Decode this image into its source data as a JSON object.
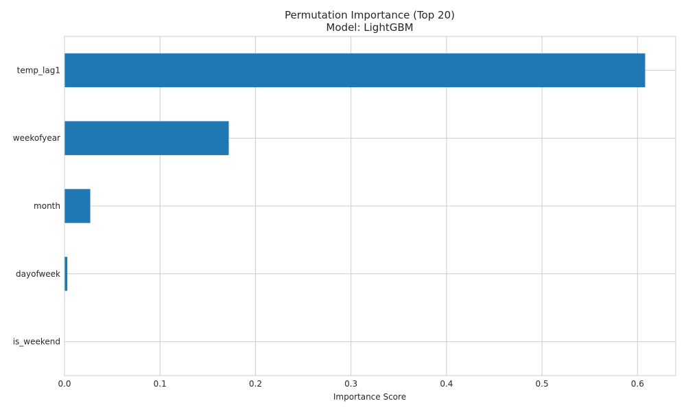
{
  "chart_data": {
    "type": "bar",
    "orientation": "horizontal",
    "title": "Permutation Importance (Top 20)",
    "subtitle": "Model: LightGBM",
    "xlabel": "Importance Score",
    "ylabel": "",
    "xlim": [
      0,
      0.64
    ],
    "xticks": [
      0.0,
      0.1,
      0.2,
      0.3,
      0.4,
      0.5,
      0.6
    ],
    "xtick_labels": [
      "0.0",
      "0.1",
      "0.2",
      "0.3",
      "0.4",
      "0.5",
      "0.6"
    ],
    "grid": true,
    "categories": [
      "temp_lag1",
      "weekofyear",
      "month",
      "dayofweek",
      "is_weekend"
    ],
    "values": [
      0.608,
      0.172,
      0.027,
      0.003,
      0.0
    ],
    "bar_color": "#1f77b4"
  }
}
